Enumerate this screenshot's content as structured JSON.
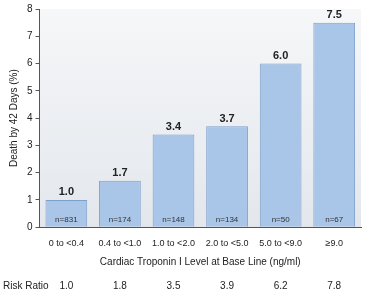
{
  "chart_data": {
    "type": "bar",
    "categories": [
      "0 to <0.4",
      "0.4 to <1.0",
      "1.0 to <2.0",
      "2.0 to <5.0",
      "5.0 to <9.0",
      "≥9.0"
    ],
    "values": [
      1.0,
      1.7,
      3.4,
      3.7,
      6.0,
      7.5
    ],
    "value_labels": [
      "1.0",
      "1.7",
      "3.4",
      "3.7",
      "6.0",
      "7.5"
    ],
    "bar_annotations": [
      "n=831",
      "n=174",
      "n=148",
      "n=134",
      "n=50",
      "n=67"
    ],
    "color": "#a9c5e8",
    "x_label": "Cardiac Troponin I Level at Base Line (ng/ml)",
    "y_label": "Death by 42 Days (%)",
    "ylim": [
      0,
      8
    ],
    "yticks": [
      0,
      1,
      2,
      3,
      4,
      5,
      6,
      7,
      8
    ],
    "grid": false,
    "data_labels": true,
    "risk_ratio": {
      "label": "Risk Ratio",
      "values": [
        1.0,
        1.8,
        3.5,
        3.9,
        6.2,
        7.8
      ],
      "value_labels": [
        "1.0",
        "1.8",
        "3.5",
        "3.9",
        "6.2",
        "7.8"
      ]
    }
  }
}
